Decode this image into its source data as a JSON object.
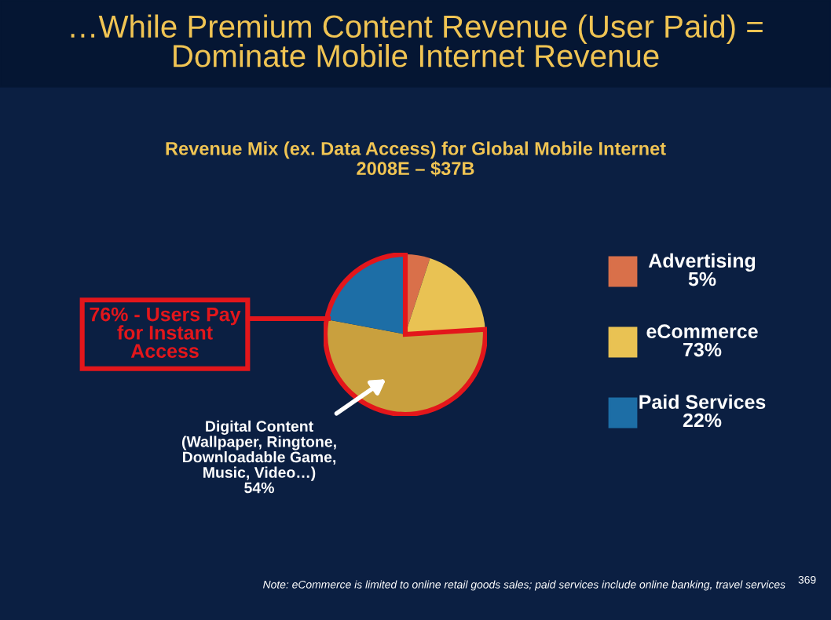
{
  "chart_data": {
    "type": "pie",
    "title": "…While Premium Content Revenue (User Paid) =\nDominate Mobile Internet Revenue",
    "subtitle": "Revenue Mix (ex. Data Access) for Global Mobile Internet\n2008E – $37B",
    "categories": [
      "Advertising",
      "eCommerce",
      null,
      "Paid Services"
    ],
    "values": [
      5,
      19,
      54,
      22
    ],
    "colors": [
      "#d9704a",
      "#e9c253",
      "#c9a03e",
      "#1d6ea6"
    ],
    "legend": "right",
    "annotations": [
      "76% - Users Pay\nfor Instant\nAccess",
      "Digital Content\n(Wallpaper, Ringtone,\nDownloadable Game,\nMusic, Video…)\n54%",
      "Note: eCommerce is limited to online retail goods sales; paid services include online banking, travel services",
      "369",
      "5%",
      "73%",
      "22%"
    ]
  }
}
